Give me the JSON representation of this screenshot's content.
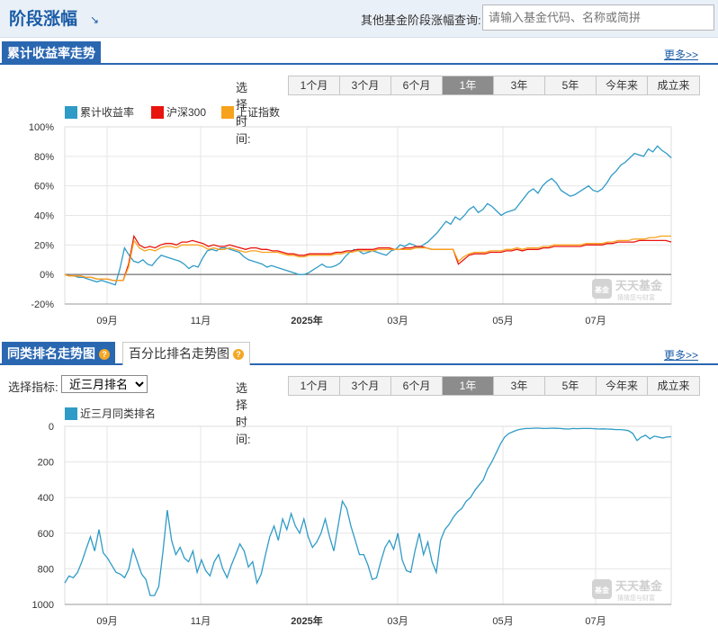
{
  "header": {
    "title": "阶段涨幅",
    "query_label": "其他基金阶段涨幅查询:",
    "search_placeholder": "请输入基金代码、名称或简拼"
  },
  "section1": {
    "tab_label": "累计收益率走势",
    "more_label": "更多>>",
    "range_label": "选择时间:",
    "ranges": [
      "1个月",
      "3个月",
      "6个月",
      "1年",
      "3年",
      "5年",
      "今年来",
      "成立来"
    ],
    "active_range": "1年"
  },
  "section2": {
    "tab_label": "同类排名走势图",
    "tab2_label": "百分比排名走势图",
    "more_label": "更多>>",
    "indicator_label": "选择指标:",
    "indicator_value": "近三月排名",
    "range_label": "选择时间:",
    "ranges": [
      "1个月",
      "3个月",
      "6个月",
      "1年",
      "3年",
      "5年",
      "今年来",
      "成立来"
    ],
    "active_range": "1年"
  },
  "watermark": {
    "brand": "天天基金",
    "slogan": "猜猜您与财富",
    "badge": "基金"
  },
  "colors": {
    "fund": "#2f9bc6",
    "hs300": "#e8140e",
    "sh": "#f7a21c",
    "accent": "#2a67b1"
  },
  "chart_data": [
    {
      "type": "line",
      "x_tick_labels": [
        "09月",
        "11月",
        "2025年",
        "03月",
        "05月",
        "07月"
      ],
      "y_tick_labels": [
        "100%",
        "80%",
        "60%",
        "40%",
        "20%",
        "0%",
        "-20%"
      ],
      "ylim": [
        -20,
        100
      ],
      "grid": true,
      "legend_position": "top-left",
      "series": [
        {
          "name": "累计收益率",
          "color": "#2f9bc6",
          "values": [
            0,
            -1,
            -1,
            -2,
            -2,
            -3,
            -4,
            -5,
            -4,
            -5,
            -6,
            -7,
            4,
            18,
            13,
            9,
            8,
            10,
            7,
            6,
            10,
            13,
            12,
            11,
            10,
            9,
            7,
            4,
            6,
            5,
            11,
            16,
            17,
            16,
            18,
            18,
            17,
            16,
            15,
            12,
            10,
            9,
            8,
            7,
            5,
            6,
            5,
            4,
            3,
            2,
            1,
            0,
            0,
            1,
            3,
            5,
            7,
            5,
            5,
            6,
            8,
            12,
            15,
            17,
            16,
            14,
            15,
            16,
            15,
            14,
            13,
            16,
            17,
            20,
            19,
            21,
            20,
            18,
            20,
            22,
            25,
            28,
            32,
            36,
            34,
            39,
            37,
            40,
            44,
            46,
            42,
            44,
            48,
            46,
            43,
            40,
            42,
            43,
            44,
            48,
            52,
            56,
            58,
            55,
            60,
            63,
            65,
            62,
            57,
            55,
            53,
            54,
            56,
            58,
            60,
            57,
            56,
            58,
            62,
            67,
            70,
            74,
            76,
            79,
            82,
            81,
            80,
            85,
            83,
            87,
            84,
            82,
            79
          ]
        },
        {
          "name": "沪深300",
          "color": "#e8140e",
          "values": [
            0,
            -1,
            -1,
            -1,
            -2,
            -2,
            -3,
            -3,
            -3,
            -4,
            -4,
            -4,
            7,
            26,
            20,
            18,
            19,
            18,
            20,
            21,
            21,
            20,
            22,
            22,
            23,
            22,
            21,
            19,
            20,
            19,
            19,
            20,
            19,
            18,
            17,
            18,
            18,
            17,
            17,
            16,
            16,
            15,
            14,
            14,
            13,
            13,
            14,
            14,
            14,
            14,
            14,
            15,
            15,
            16,
            16,
            17,
            17,
            17,
            17,
            18,
            18,
            18,
            17,
            17,
            18,
            18,
            19,
            19,
            18,
            17,
            17,
            17,
            17,
            17,
            7,
            10,
            13,
            14,
            14,
            14,
            15,
            15,
            15,
            16,
            16,
            17,
            16,
            17,
            17,
            17,
            18,
            18,
            19,
            19,
            19,
            19,
            19,
            19,
            20,
            20,
            20,
            20,
            21,
            21,
            22,
            22,
            22,
            22,
            23,
            23,
            23,
            23,
            23,
            23,
            22
          ]
        },
        {
          "name": "上证指数",
          "color": "#f7a21c",
          "values": [
            0,
            -1,
            -1,
            -1,
            -2,
            -2,
            -3,
            -3,
            -3,
            -4,
            -4,
            -4,
            5,
            23,
            18,
            16,
            17,
            16,
            18,
            19,
            19,
            18,
            20,
            20,
            20,
            20,
            19,
            17,
            18,
            17,
            17,
            18,
            17,
            16,
            15,
            16,
            16,
            15,
            15,
            15,
            15,
            14,
            13,
            13,
            12,
            12,
            13,
            13,
            13,
            13,
            13,
            14,
            14,
            15,
            15,
            16,
            16,
            16,
            16,
            17,
            17,
            17,
            17,
            17,
            17,
            17,
            18,
            18,
            18,
            17,
            17,
            17,
            17,
            17,
            9,
            12,
            14,
            15,
            15,
            15,
            16,
            16,
            16,
            17,
            17,
            18,
            17,
            18,
            18,
            18,
            19,
            19,
            20,
            20,
            20,
            20,
            20,
            20,
            21,
            21,
            21,
            21,
            22,
            22,
            23,
            23,
            23,
            24,
            24,
            24,
            25,
            25,
            26,
            26,
            26
          ]
        }
      ]
    },
    {
      "type": "line",
      "x_tick_labels": [
        "09月",
        "11月",
        "2025年",
        "03月",
        "05月",
        "07月"
      ],
      "y_tick_labels": [
        "0",
        "200",
        "400",
        "600",
        "800",
        "1000"
      ],
      "ylim": [
        1000,
        0
      ],
      "grid": true,
      "legend_position": "top-left",
      "series": [
        {
          "name": "近三月同类排名",
          "color": "#2f9bc6",
          "values": [
            880,
            840,
            850,
            820,
            760,
            690,
            620,
            700,
            580,
            710,
            740,
            780,
            820,
            830,
            850,
            800,
            690,
            760,
            830,
            860,
            950,
            950,
            900,
            700,
            470,
            640,
            720,
            680,
            740,
            760,
            700,
            820,
            750,
            810,
            840,
            760,
            720,
            800,
            850,
            780,
            720,
            660,
            700,
            790,
            760,
            880,
            830,
            720,
            620,
            560,
            640,
            520,
            580,
            490,
            560,
            600,
            520,
            620,
            680,
            650,
            600,
            520,
            620,
            700,
            560,
            420,
            460,
            560,
            640,
            720,
            720,
            780,
            860,
            850,
            760,
            680,
            640,
            690,
            600,
            750,
            810,
            820,
            700,
            600,
            720,
            650,
            760,
            820,
            640,
            580,
            550,
            510,
            480,
            460,
            420,
            400,
            360,
            330,
            300,
            240,
            200,
            150,
            100,
            60,
            40,
            30,
            20,
            15,
            12,
            12,
            10,
            10,
            12,
            12,
            10,
            11,
            12,
            14,
            15,
            12,
            13,
            12,
            12,
            12,
            13,
            15,
            14,
            15,
            16,
            18,
            18,
            20,
            24,
            40,
            80,
            60,
            50,
            70,
            55,
            60,
            65,
            60,
            58
          ]
        }
      ]
    }
  ]
}
